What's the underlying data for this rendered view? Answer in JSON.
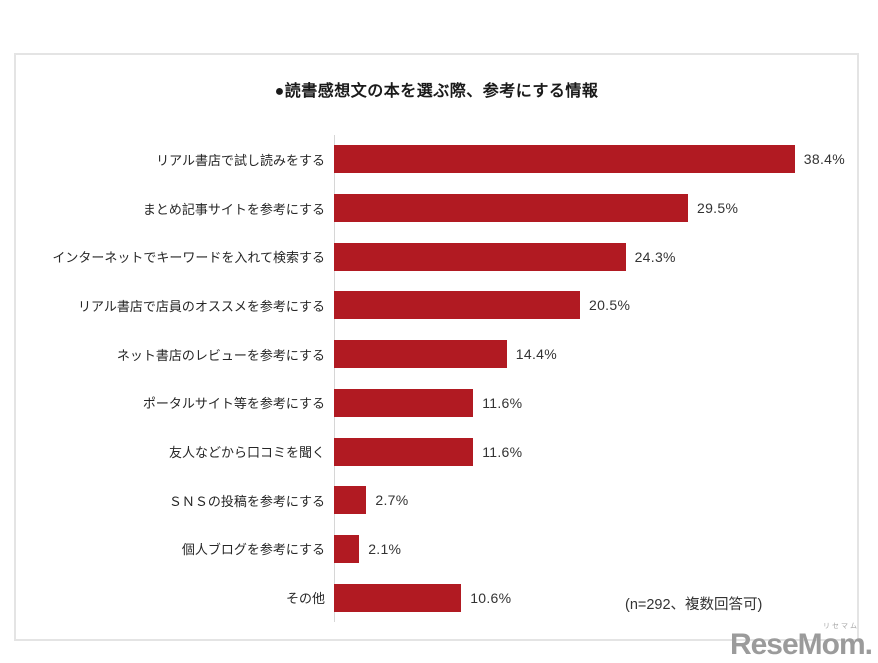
{
  "title": "●読書感想文の本を選ぶ際、参考にする情報",
  "note": "(n=292、複数回答可)",
  "logo": {
    "text": "ReseMom.",
    "ruby": "リセマム"
  },
  "colors": {
    "bar": "#b11a22",
    "box_border": "#e4e4e4",
    "axis": "#d6d6d6",
    "logo": "#9b9b9b"
  },
  "chart_data": {
    "type": "bar",
    "orientation": "horizontal",
    "title": "●読書感想文の本を選ぶ際、参考にする情報",
    "categories": [
      "リアル書店で試し読みをする",
      "まとめ記事サイトを参考にする",
      "インターネットでキーワードを入れて検索する",
      "リアル書店で店員のオススメを参考にする",
      "ネット書店のレビューを参考にする",
      "ポータルサイト等を参考にする",
      "友人などから口コミを聞く",
      "ＳＮＳの投稿を参考にする",
      "個人ブログを参考にする",
      "その他"
    ],
    "values": [
      38.4,
      29.5,
      24.3,
      20.5,
      14.4,
      11.6,
      11.6,
      2.7,
      2.1,
      10.6
    ],
    "value_labels": [
      "38.4%",
      "29.5%",
      "24.3%",
      "20.5%",
      "14.4%",
      "11.6%",
      "11.6%",
      "2.7%",
      "2.1%",
      "10.6%"
    ],
    "unit": "%",
    "xlim": [
      0,
      40
    ],
    "grid": false,
    "legend": false,
    "value_label_position": "end-of-bar",
    "annotation": "(n=292、複数回答可)",
    "bar_color": "#b11a22"
  }
}
